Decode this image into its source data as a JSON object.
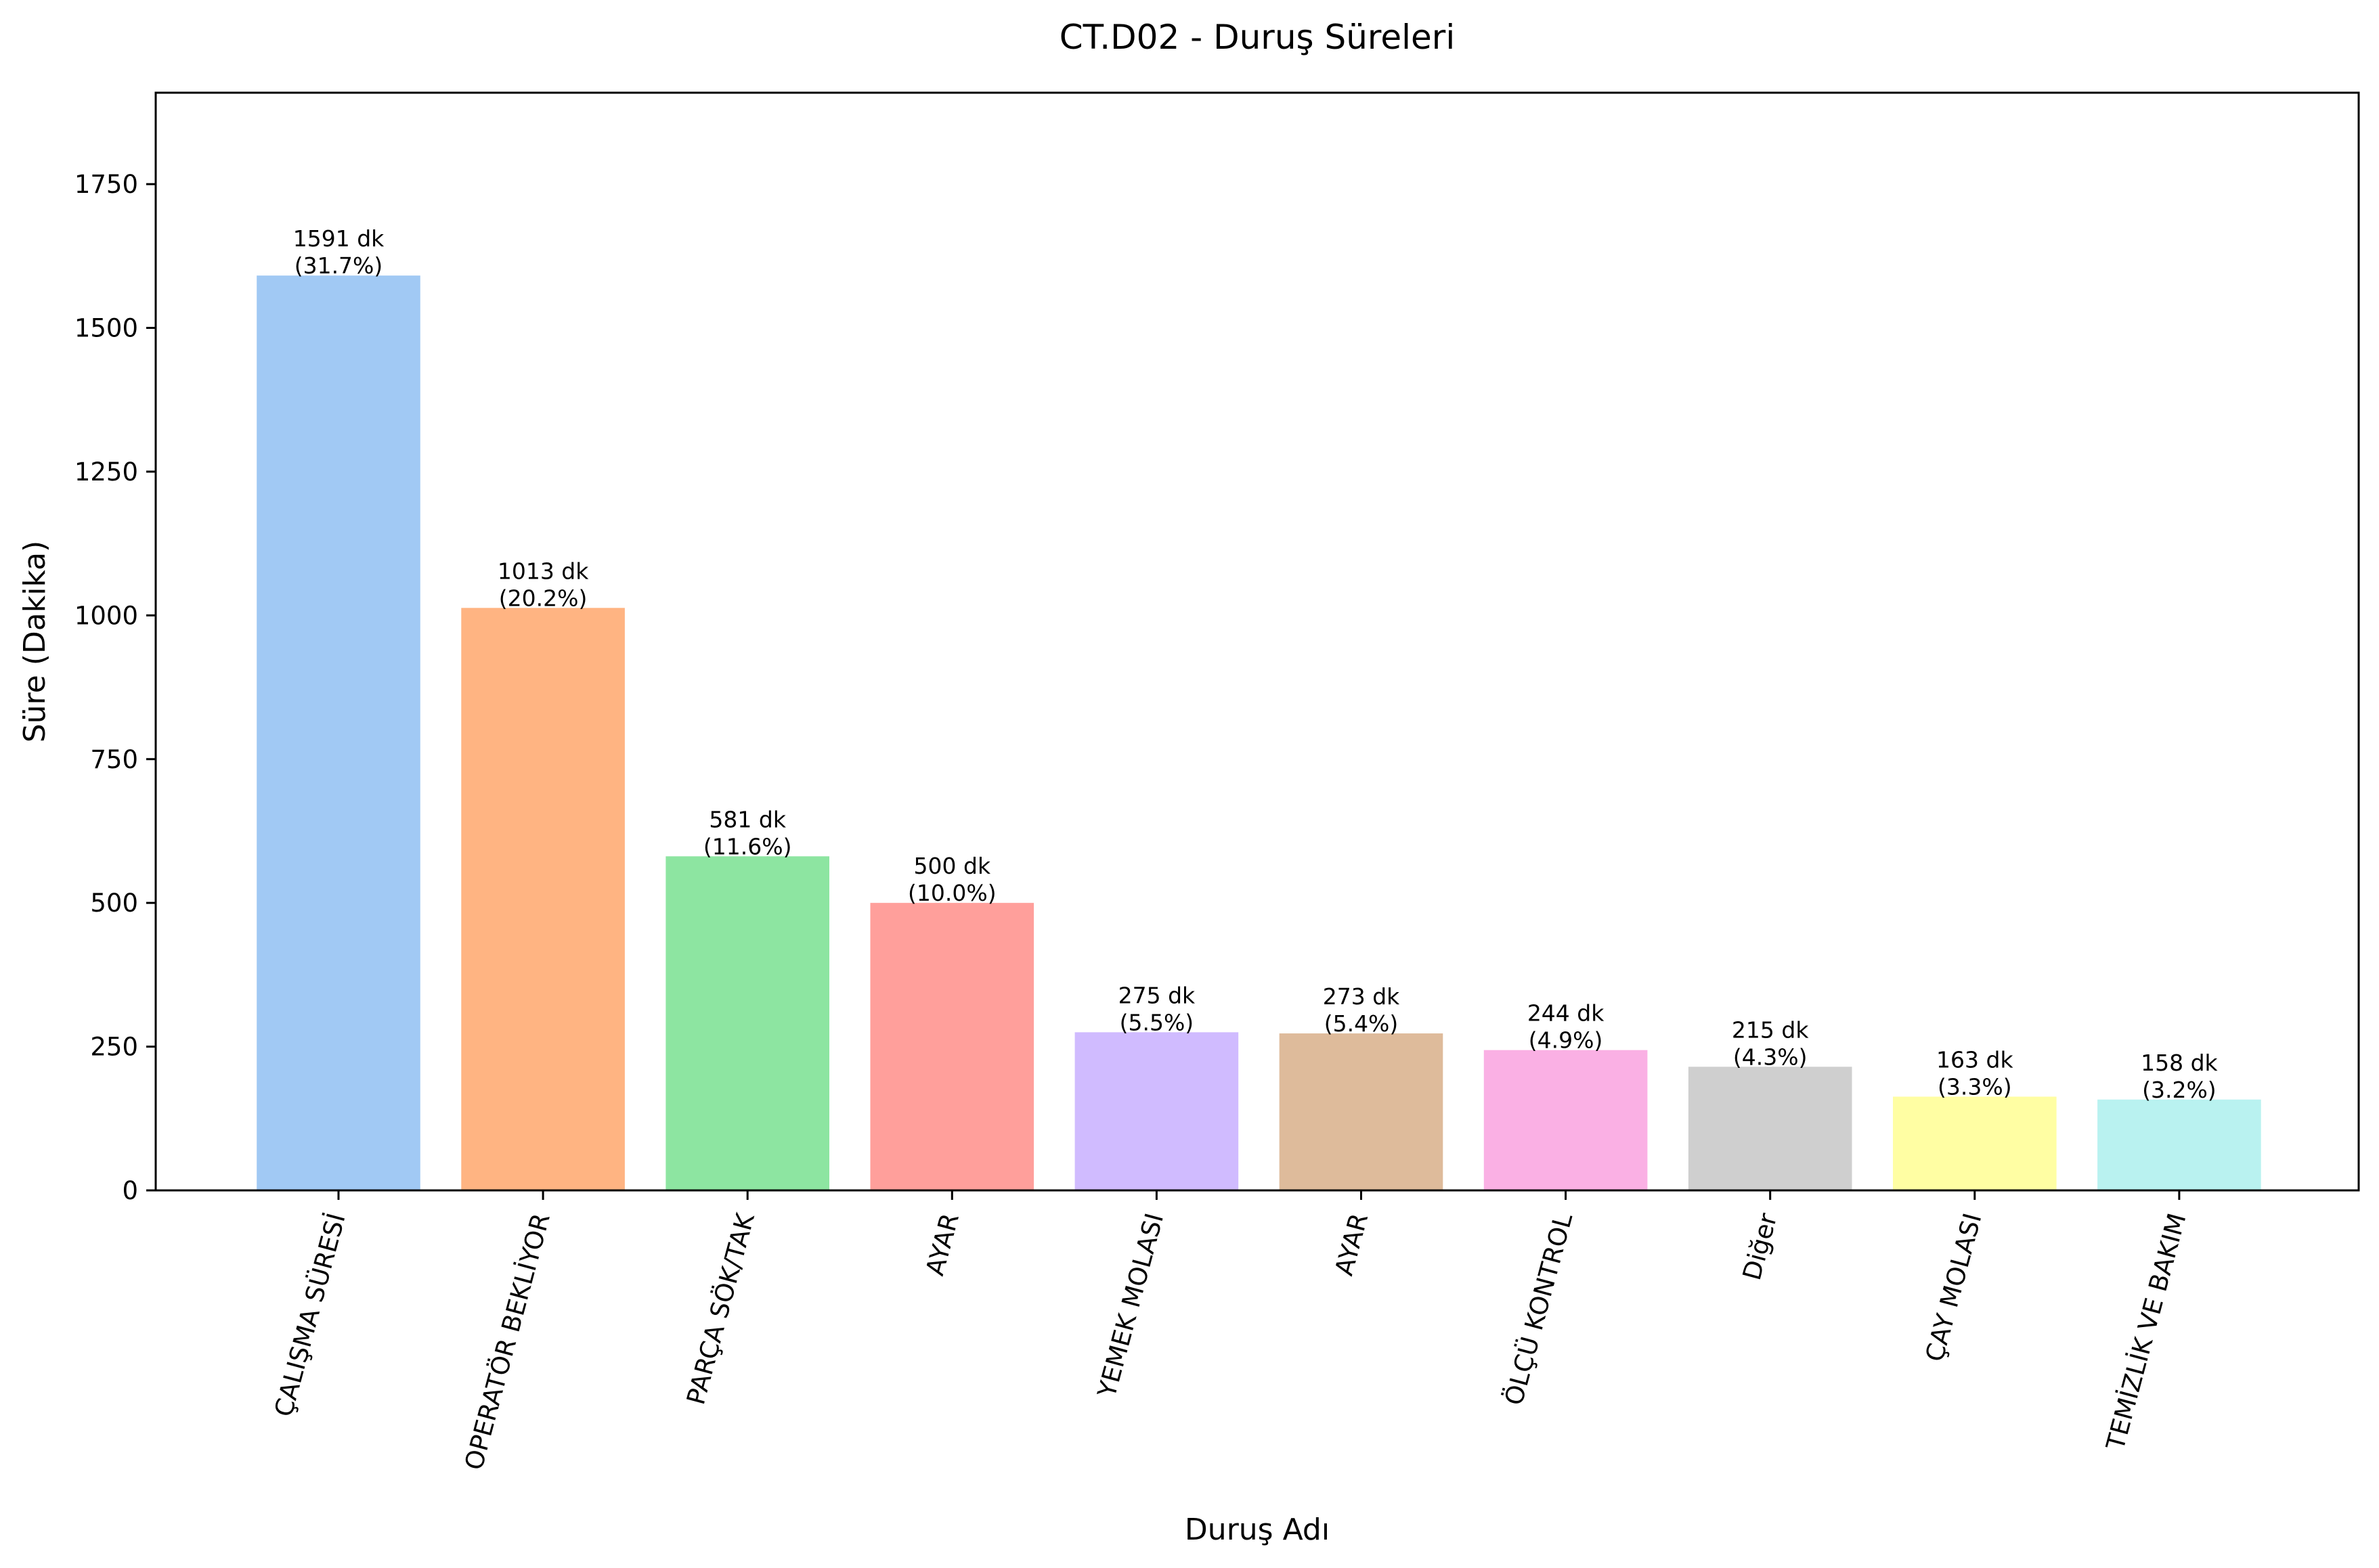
{
  "chart_data": {
    "type": "bar",
    "title": "CT.D02 - Duruş Süreleri",
    "xlabel": "Duruş Adı",
    "ylabel": "Süre (Dakika)",
    "ylim": [
      0,
      1909
    ],
    "yticks": [
      0,
      250,
      500,
      750,
      1000,
      1250,
      1500,
      1750
    ],
    "grid": false,
    "legend": "none",
    "categories": [
      "ÇALIŞMA SÜRESİ",
      "OPERATÖR BEKLİYOR",
      "PARÇA SÖK/TAK",
      "AYAR",
      "YEMEK MOLASI",
      "AYAR",
      "ÖLÇÜ KONTROL",
      "Diğer",
      "ÇAY MOLASI",
      "TEMİZLİK VE BAKIM"
    ],
    "values": [
      1591,
      1013,
      581,
      500,
      275,
      273,
      244,
      215,
      163,
      158
    ],
    "value_labels": [
      "1591 dk",
      "1013 dk",
      "581 dk",
      "500 dk",
      "275 dk",
      "273 dk",
      "244 dk",
      "215 dk",
      "163 dk",
      "158 dk"
    ],
    "percent_labels": [
      "(31.7%)",
      "(20.2%)",
      "(11.6%)",
      "(10.0%)",
      "(5.5%)",
      "(5.4%)",
      "(4.9%)",
      "(4.3%)",
      "(3.3%)",
      "(3.2%)"
    ],
    "colors": [
      "#a1c9f4",
      "#ffb482",
      "#8de5a1",
      "#ff9f9b",
      "#d0bbff",
      "#debb9b",
      "#fab0e4",
      "#cfcfcf",
      "#fffea3",
      "#b9f2f0"
    ]
  }
}
